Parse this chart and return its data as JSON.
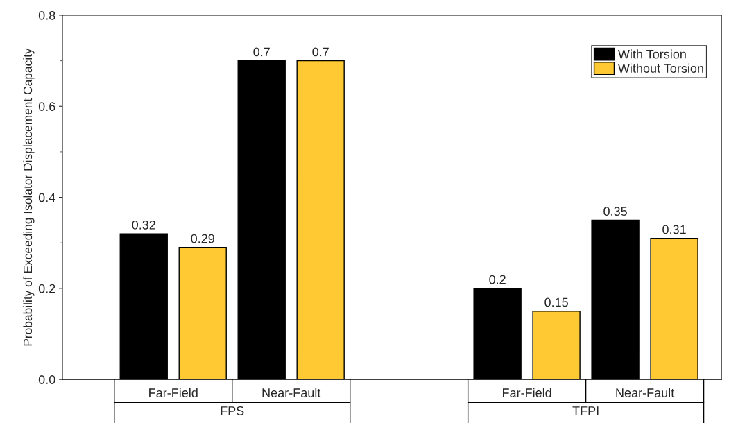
{
  "chart_data": {
    "type": "bar",
    "ylabel": "Probability of Exceeding Isolator Displacement Capacity",
    "categories": [
      "Far-Field",
      "Near-Fault",
      null,
      "Far-Field",
      "Near-Fault"
    ],
    "series": [
      {
        "name": "With Torsion",
        "color": "#000000",
        "values": [
          0.32,
          0.7,
          null,
          0.2,
          0.35
        ]
      },
      {
        "name": "Without Torsion",
        "color": "#ffc933",
        "values": [
          0.29,
          0.7,
          null,
          0.15,
          0.31
        ]
      }
    ],
    "annotations": [
      "FPS",
      "TFPI"
    ],
    "ylim": [
      0,
      0.8
    ],
    "yticks": [
      {
        "value": 0,
        "label": "0.0"
      },
      {
        "value": 0.2,
        "label": "0.2"
      },
      {
        "value": 0.4,
        "label": "0.4"
      },
      {
        "value": 0.6,
        "label": "0.6"
      },
      {
        "value": 0.8,
        "label": "0.8"
      }
    ],
    "data_labels": true,
    "legend": "top right",
    "grid": false
  }
}
